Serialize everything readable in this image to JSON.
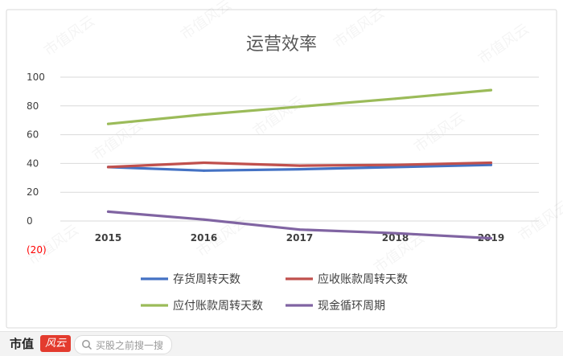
{
  "chart_data": {
    "type": "line",
    "title": "运营效率",
    "categories": [
      "2015",
      "2016",
      "2017",
      "2018",
      "2019"
    ],
    "yticks": [
      "100",
      "80",
      "60",
      "40",
      "20",
      "0",
      "(20)"
    ],
    "ylim": [
      -20,
      100
    ],
    "grid": true,
    "legend_position": "bottom",
    "series": [
      {
        "name": "存货周转天数",
        "color": "#4472c4",
        "values": [
          37.5,
          35,
          36,
          37.5,
          39
        ]
      },
      {
        "name": "应收账款周转天数",
        "color": "#c0504d",
        "values": [
          37.5,
          40.5,
          38.5,
          39,
          40.5
        ]
      },
      {
        "name": "应付账款周转天数",
        "color": "#9bbb59",
        "values": [
          67.5,
          74,
          79.5,
          85,
          91
        ]
      },
      {
        "name": "现金循环周期",
        "color": "#8064a2",
        "values": [
          6.5,
          1,
          -6,
          -8.5,
          -12
        ]
      }
    ],
    "negative_tick_color": "#ff0000"
  },
  "watermark": {
    "text": "市值风云"
  },
  "footer": {
    "brand": "市值",
    "badge": "风云",
    "search_placeholder": "买股之前搜一搜"
  }
}
